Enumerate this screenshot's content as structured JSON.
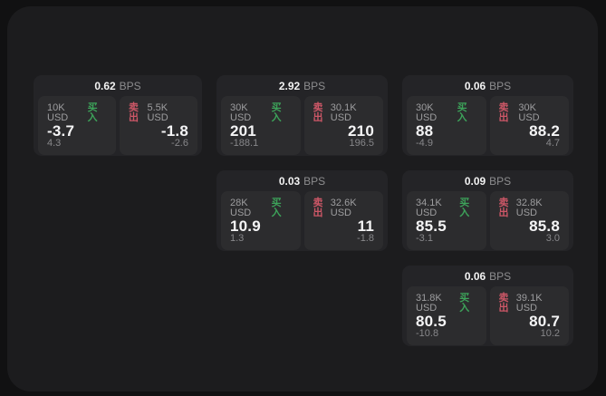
{
  "labels": {
    "bps_unit": "BPS",
    "buy": "买入",
    "sell": "卖出"
  },
  "colors": {
    "buy": "#3da35a",
    "sell": "#cd5767",
    "panel_bg": "#1c1c1e",
    "card_bg": "#242427",
    "cell_bg": "#2c2c2e"
  },
  "cards": [
    {
      "bps": "0.62",
      "buy": {
        "notional": "10K USD",
        "price": "-3.7",
        "delta": "4.3"
      },
      "sell": {
        "notional": "5.5K USD",
        "price": "-1.8",
        "delta": "-2.6"
      }
    },
    {
      "bps": "2.92",
      "buy": {
        "notional": "30K USD",
        "price": "201",
        "delta": "-188.1"
      },
      "sell": {
        "notional": "30.1K USD",
        "price": "210",
        "delta": "196.5"
      }
    },
    {
      "bps": "0.06",
      "buy": {
        "notional": "30K USD",
        "price": "88",
        "delta": "-4.9"
      },
      "sell": {
        "notional": "30K USD",
        "price": "88.2",
        "delta": "4.7"
      }
    },
    {
      "bps": "0.03",
      "buy": {
        "notional": "28K USD",
        "price": "10.9",
        "delta": "1.3"
      },
      "sell": {
        "notional": "32.6K USD",
        "price": "11",
        "delta": "-1.8"
      }
    },
    {
      "bps": "0.09",
      "buy": {
        "notional": "34.1K USD",
        "price": "85.5",
        "delta": "-3.1"
      },
      "sell": {
        "notional": "32.8K USD",
        "price": "85.8",
        "delta": "3.0"
      }
    },
    {
      "bps": "0.06",
      "buy": {
        "notional": "31.8K USD",
        "price": "80.5",
        "delta": "-10.8"
      },
      "sell": {
        "notional": "39.1K USD",
        "price": "80.7",
        "delta": "10.2"
      }
    }
  ]
}
